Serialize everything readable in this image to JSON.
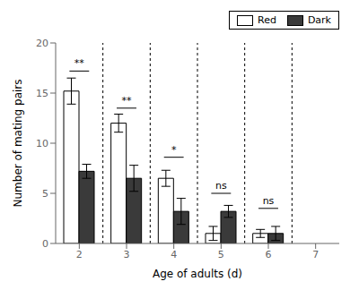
{
  "chart_data": {
    "type": "bar",
    "x": [
      2,
      3,
      4,
      5,
      6
    ],
    "xlabel": "Age of adults (d)",
    "ylabel": "Number of mating pairs",
    "xlim": [
      1.5,
      7.5
    ],
    "xticks": [
      2,
      3,
      4,
      5,
      6,
      7
    ],
    "ylim": [
      0,
      20
    ],
    "yticks": [
      0,
      5,
      10,
      15,
      20
    ],
    "series": [
      {
        "name": "Red",
        "color": "#ffffff",
        "values": [
          15.2,
          12.0,
          6.5,
          1.0,
          1.0
        ],
        "errors": [
          1.3,
          0.9,
          0.8,
          0.7,
          0.4
        ]
      },
      {
        "name": "Dark",
        "color": "#3a3a3a",
        "values": [
          7.2,
          6.5,
          3.2,
          3.2,
          1.0
        ],
        "errors": [
          0.7,
          1.3,
          1.3,
          0.6,
          0.7
        ]
      }
    ],
    "annotations": [
      {
        "x": 2,
        "y": 17.2,
        "text": "**"
      },
      {
        "x": 3,
        "y": 13.5,
        "text": "**"
      },
      {
        "x": 4,
        "y": 8.6,
        "text": "*"
      },
      {
        "x": 5,
        "y": 5.0,
        "text": "ns"
      },
      {
        "x": 6,
        "y": 3.5,
        "text": "ns"
      }
    ],
    "vlines": [
      2.5,
      3.5,
      4.5,
      5.5,
      6.5
    ],
    "legend": "upper right",
    "grid": false
  }
}
